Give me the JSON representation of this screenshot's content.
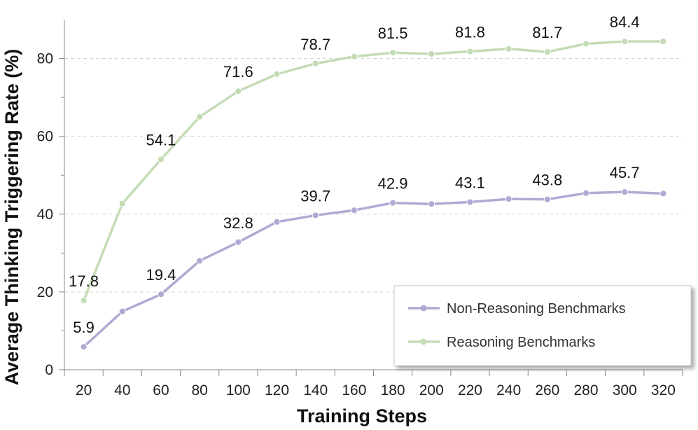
{
  "chart_data": {
    "type": "line",
    "title": "",
    "xlabel": "Training Steps",
    "ylabel": "Average Thinking Triggering Rate (%)",
    "x": [
      20,
      40,
      60,
      80,
      100,
      120,
      140,
      160,
      180,
      200,
      220,
      240,
      260,
      280,
      300,
      320
    ],
    "x_tick_labels": [
      "20",
      "40",
      "60",
      "80",
      "100",
      "120",
      "140",
      "160",
      "180",
      "200",
      "220",
      "240",
      "260",
      "280",
      "300",
      "320"
    ],
    "y_ticks": [
      0,
      20,
      40,
      60,
      80
    ],
    "y_tick_labels": [
      "0",
      "20",
      "40",
      "60",
      "80"
    ],
    "ylim": [
      0,
      90
    ],
    "grid": "horizontal-dashed",
    "legend_position": "bottom-right",
    "series": [
      {
        "name": "Non-Reasoning Benchmarks",
        "color": "#aeabd3",
        "values": [
          5.9,
          15.0,
          19.4,
          28.0,
          32.8,
          38.0,
          39.7,
          41.0,
          42.9,
          42.6,
          43.1,
          43.9,
          43.8,
          45.4,
          45.7,
          45.3
        ],
        "labels": [
          {
            "index": 0,
            "text": "5.9"
          },
          {
            "index": 2,
            "text": "19.4"
          },
          {
            "index": 4,
            "text": "32.8"
          },
          {
            "index": 6,
            "text": "39.7"
          },
          {
            "index": 8,
            "text": "42.9"
          },
          {
            "index": 10,
            "text": "43.1"
          },
          {
            "index": 12,
            "text": "43.8"
          },
          {
            "index": 14,
            "text": "45.7"
          }
        ]
      },
      {
        "name": "Reasoning Benchmarks",
        "color": "#c4dcb6",
        "values": [
          17.8,
          42.7,
          54.1,
          65.0,
          71.6,
          76.0,
          78.7,
          80.5,
          81.5,
          81.2,
          81.8,
          82.5,
          81.7,
          83.8,
          84.4,
          84.4
        ],
        "labels": [
          {
            "index": 0,
            "text": "17.8"
          },
          {
            "index": 2,
            "text": "54.1"
          },
          {
            "index": 4,
            "text": "71.6"
          },
          {
            "index": 6,
            "text": "78.7"
          },
          {
            "index": 8,
            "text": "81.5"
          },
          {
            "index": 10,
            "text": "81.8"
          },
          {
            "index": 12,
            "text": "81.7"
          },
          {
            "index": 14,
            "text": "84.4"
          }
        ]
      }
    ]
  }
}
